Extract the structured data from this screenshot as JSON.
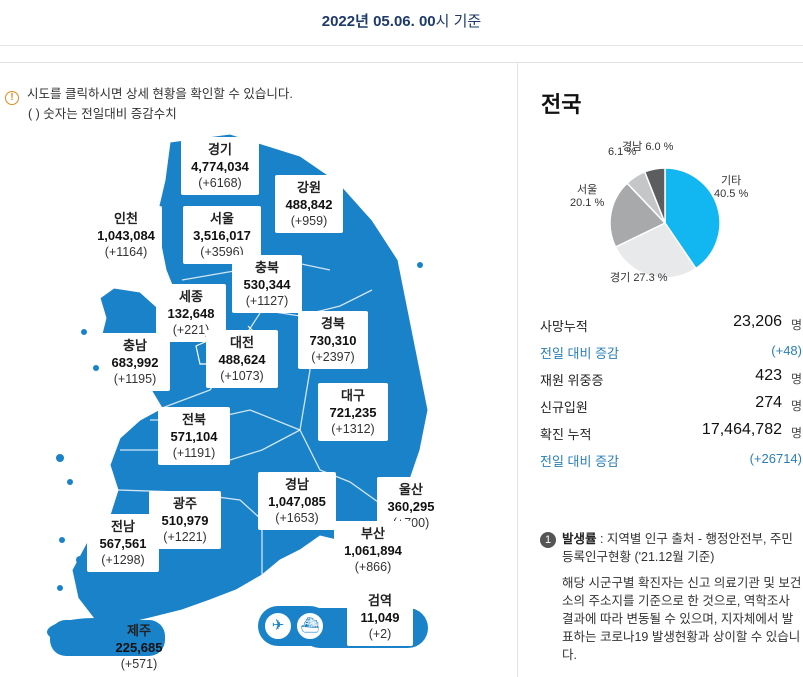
{
  "header": {
    "date_strong": "2022년 05.06. 00",
    "date_suffix": "시 기준"
  },
  "info": {
    "line1": "시도를 클릭하시면 상세 현황을 확인할 수 있습니다.",
    "line2": "( ) 숫자는 전일대비 증감수치",
    "icon": "info-icon"
  },
  "regions": [
    {
      "name": "경기",
      "value": "4,774,034",
      "delta": "(+6168)"
    },
    {
      "name": "강원",
      "value": "488,842",
      "delta": "(+959)"
    },
    {
      "name": "인천",
      "value": "1,043,084",
      "delta": "(+1164)"
    },
    {
      "name": "서울",
      "value": "3,516,017",
      "delta": "(+3596)"
    },
    {
      "name": "충북",
      "value": "530,344",
      "delta": "(+1127)"
    },
    {
      "name": "세종",
      "value": "132,648",
      "delta": "(+221)"
    },
    {
      "name": "경북",
      "value": "730,310",
      "delta": "(+2397)"
    },
    {
      "name": "충남",
      "value": "683,992",
      "delta": "(+1195)"
    },
    {
      "name": "대전",
      "value": "488,624",
      "delta": "(+1073)"
    },
    {
      "name": "대구",
      "value": "721,235",
      "delta": "(+1312)"
    },
    {
      "name": "전북",
      "value": "571,104",
      "delta": "(+1191)"
    },
    {
      "name": "경남",
      "value": "1,047,085",
      "delta": "(+1653)"
    },
    {
      "name": "울산",
      "value": "360,295",
      "delta": "(+700)"
    },
    {
      "name": "광주",
      "value": "510,979",
      "delta": "(+1221)"
    },
    {
      "name": "전남",
      "value": "567,561",
      "delta": "(+1298)"
    },
    {
      "name": "부산",
      "value": "1,061,894",
      "delta": "(+866)"
    },
    {
      "name": "검역",
      "value": "11,049",
      "delta": "(+2)"
    },
    {
      "name": "제주",
      "value": "225,685",
      "delta": "(+571)"
    }
  ],
  "transit_icons": [
    "airplane-icon",
    "ship-icon"
  ],
  "panel": {
    "title": "전국",
    "pie": {
      "colors": {
        "기타": "#12b6f0",
        "경기": "#e7e9ea",
        "서울": "#a7a9ab",
        "경남": "#5b5d5f",
        "부산": "#c4c6c8"
      },
      "slices": [
        {
          "label": "기타",
          "pct": "40.5 %",
          "value": 40.5
        },
        {
          "label": "경기",
          "pct": "27.3 %",
          "value": 27.3
        },
        {
          "label": "서울",
          "pct": "20.1 %",
          "value": 20.1
        },
        {
          "label": "",
          "pct": "6.1 %",
          "value": 6.1
        },
        {
          "label": "경남",
          "pct": "6.0 %",
          "value": 6.0
        }
      ]
    },
    "stats": [
      {
        "key": "사망누적",
        "value": "23,206",
        "unit": "명"
      },
      {
        "key": "전일 대비 증감",
        "value": "(+48)",
        "unit": ""
      },
      {
        "key": "재원 위중증",
        "value": "423",
        "unit": "명"
      },
      {
        "key": "신규입원",
        "value": "274",
        "unit": "명"
      },
      {
        "key": "확진 누적",
        "value": "17,464,782",
        "unit": "명"
      },
      {
        "key": "전일 대비 증감",
        "value": "(+26714)",
        "unit": ""
      }
    ],
    "note": {
      "num": "1",
      "title": "발생률",
      "source": " : 지역별 인구 출처 - 행정안전부, 주민등록인구현황 ('21.12월 기준)",
      "desc": "해당 시군구별 확진자는 신고 의료기관 및 보건소의 주소지를 기준으로 한 것으로, 역학조사 결과에 따라 변동될 수 있으며, 지자체에서 발표하는 코로나19 발생현황과 상이할 수 있습니다."
    }
  }
}
